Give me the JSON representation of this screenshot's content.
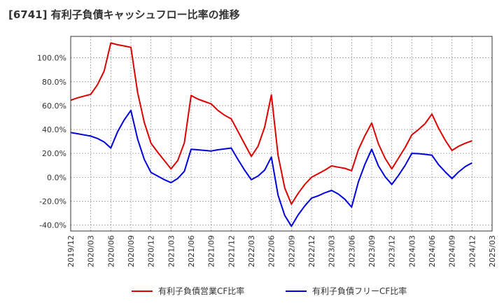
{
  "title": "[6741]  有利子負債キャッシュフロー比率の推移",
  "chart_data": {
    "type": "line",
    "title": "[6741]  有利子負債キャッシュフロー比率の推移",
    "x_tick_labels": [
      "2019/12",
      "2020/03",
      "2020/06",
      "2020/09",
      "2020/12",
      "2021/03",
      "2021/06",
      "2021/09",
      "2021/12",
      "2022/03",
      "2022/06",
      "2022/09",
      "2022/12",
      "2023/03",
      "2023/06",
      "2023/09",
      "2023/12",
      "2024/03",
      "2024/06",
      "2024/09",
      "2024/12",
      "2025/03"
    ],
    "x_start": "2019/12",
    "y_ticks": [
      -40,
      -20,
      0,
      20,
      40,
      60,
      80,
      100
    ],
    "y_tick_labels": [
      "-40.0%",
      "-20.0%",
      "0.0%",
      "20.0%",
      "40.0%",
      "60.0%",
      "80.0%",
      "100.0%"
    ],
    "ylim": [
      -45,
      118
    ],
    "grid": true,
    "legend_position": "bottom",
    "series": [
      {
        "name": "有利子負債営業CF比率",
        "color": "#dd0000",
        "points": [
          {
            "x": "2019/12",
            "y": 64.5
          },
          {
            "x": "2020/01",
            "y": 66.5
          },
          {
            "x": "2020/02",
            "y": 68.0
          },
          {
            "x": "2020/03",
            "y": 69.5
          },
          {
            "x": "2020/04",
            "y": 77.5
          },
          {
            "x": "2020/05",
            "y": 89.0
          },
          {
            "x": "2020/06",
            "y": 112.5
          },
          {
            "x": "2020/07",
            "y": 111.0
          },
          {
            "x": "2020/08",
            "y": 110.0
          },
          {
            "x": "2020/09",
            "y": 108.8
          },
          {
            "x": "2020/10",
            "y": 71.0
          },
          {
            "x": "2020/11",
            "y": 46.0
          },
          {
            "x": "2020/12",
            "y": 28.5
          },
          {
            "x": "2021/01",
            "y": 21.0
          },
          {
            "x": "2021/02",
            "y": 14.0
          },
          {
            "x": "2021/03",
            "y": 7.0
          },
          {
            "x": "2021/04",
            "y": 14.0
          },
          {
            "x": "2021/05",
            "y": 29.0
          },
          {
            "x": "2021/06",
            "y": 68.5
          },
          {
            "x": "2021/07",
            "y": 65.5
          },
          {
            "x": "2021/08",
            "y": 63.5
          },
          {
            "x": "2021/09",
            "y": 61.5
          },
          {
            "x": "2021/10",
            "y": 56.0
          },
          {
            "x": "2021/11",
            "y": 52.0
          },
          {
            "x": "2021/12",
            "y": 49.0
          },
          {
            "x": "2022/01",
            "y": 38.5
          },
          {
            "x": "2022/02",
            "y": 28.0
          },
          {
            "x": "2022/03",
            "y": 17.5
          },
          {
            "x": "2022/04",
            "y": 26.0
          },
          {
            "x": "2022/05",
            "y": 42.0
          },
          {
            "x": "2022/06",
            "y": 69.0
          },
          {
            "x": "2022/07",
            "y": 18.5
          },
          {
            "x": "2022/08",
            "y": -9.0
          },
          {
            "x": "2022/09",
            "y": -22.5
          },
          {
            "x": "2022/10",
            "y": -13.5
          },
          {
            "x": "2022/11",
            "y": -6.0
          },
          {
            "x": "2022/12",
            "y": 0.0
          },
          {
            "x": "2023/01",
            "y": 3.0
          },
          {
            "x": "2023/02",
            "y": 6.0
          },
          {
            "x": "2023/03",
            "y": 9.5
          },
          {
            "x": "2023/04",
            "y": 8.5
          },
          {
            "x": "2023/05",
            "y": 7.5
          },
          {
            "x": "2023/06",
            "y": 5.5
          },
          {
            "x": "2023/07",
            "y": 23.0
          },
          {
            "x": "2023/08",
            "y": 35.0
          },
          {
            "x": "2023/09",
            "y": 45.5
          },
          {
            "x": "2023/10",
            "y": 28.0
          },
          {
            "x": "2023/11",
            "y": 16.0
          },
          {
            "x": "2023/12",
            "y": 7.0
          },
          {
            "x": "2024/01",
            "y": 16.0
          },
          {
            "x": "2024/02",
            "y": 25.0
          },
          {
            "x": "2024/03",
            "y": 35.5
          },
          {
            "x": "2024/04",
            "y": 40.0
          },
          {
            "x": "2024/05",
            "y": 45.0
          },
          {
            "x": "2024/06",
            "y": 53.0
          },
          {
            "x": "2024/07",
            "y": 41.0
          },
          {
            "x": "2024/08",
            "y": 31.0
          },
          {
            "x": "2024/09",
            "y": 22.5
          },
          {
            "x": "2024/10",
            "y": 26.0
          },
          {
            "x": "2024/11",
            "y": 28.5
          },
          {
            "x": "2024/12",
            "y": 30.5
          }
        ]
      },
      {
        "name": "有利子負債フリーCF比率",
        "color": "#0000dd",
        "points": [
          {
            "x": "2019/12",
            "y": 37.5
          },
          {
            "x": "2020/01",
            "y": 36.5
          },
          {
            "x": "2020/02",
            "y": 35.5
          },
          {
            "x": "2020/03",
            "y": 34.5
          },
          {
            "x": "2020/04",
            "y": 32.5
          },
          {
            "x": "2020/05",
            "y": 29.5
          },
          {
            "x": "2020/06",
            "y": 24.5
          },
          {
            "x": "2020/07",
            "y": 38.0
          },
          {
            "x": "2020/08",
            "y": 48.0
          },
          {
            "x": "2020/09",
            "y": 56.0
          },
          {
            "x": "2020/10",
            "y": 32.0
          },
          {
            "x": "2020/11",
            "y": 15.0
          },
          {
            "x": "2020/12",
            "y": 4.0
          },
          {
            "x": "2021/01",
            "y": 1.0
          },
          {
            "x": "2021/02",
            "y": -2.0
          },
          {
            "x": "2021/03",
            "y": -4.5
          },
          {
            "x": "2021/04",
            "y": -1.0
          },
          {
            "x": "2021/05",
            "y": 5.0
          },
          {
            "x": "2021/06",
            "y": 23.5
          },
          {
            "x": "2021/07",
            "y": 23.0
          },
          {
            "x": "2021/08",
            "y": 22.5
          },
          {
            "x": "2021/09",
            "y": 22.0
          },
          {
            "x": "2021/10",
            "y": 23.0
          },
          {
            "x": "2021/11",
            "y": 23.8
          },
          {
            "x": "2021/12",
            "y": 24.5
          },
          {
            "x": "2022/01",
            "y": 15.0
          },
          {
            "x": "2022/02",
            "y": 6.0
          },
          {
            "x": "2022/03",
            "y": -2.0
          },
          {
            "x": "2022/04",
            "y": 1.0
          },
          {
            "x": "2022/05",
            "y": 6.0
          },
          {
            "x": "2022/06",
            "y": 17.0
          },
          {
            "x": "2022/07",
            "y": -15.0
          },
          {
            "x": "2022/08",
            "y": -32.0
          },
          {
            "x": "2022/09",
            "y": -41.0
          },
          {
            "x": "2022/10",
            "y": -31.5
          },
          {
            "x": "2022/11",
            "y": -24.0
          },
          {
            "x": "2022/12",
            "y": -17.5
          },
          {
            "x": "2023/01",
            "y": -15.5
          },
          {
            "x": "2023/02",
            "y": -13.0
          },
          {
            "x": "2023/03",
            "y": -11.0
          },
          {
            "x": "2023/04",
            "y": -14.0
          },
          {
            "x": "2023/05",
            "y": -18.5
          },
          {
            "x": "2023/06",
            "y": -25.0
          },
          {
            "x": "2023/07",
            "y": -4.0
          },
          {
            "x": "2023/08",
            "y": 11.0
          },
          {
            "x": "2023/09",
            "y": 23.5
          },
          {
            "x": "2023/10",
            "y": 9.5
          },
          {
            "x": "2023/11",
            "y": 0.5
          },
          {
            "x": "2023/12",
            "y": -6.0
          },
          {
            "x": "2024/01",
            "y": 1.5
          },
          {
            "x": "2024/02",
            "y": 10.0
          },
          {
            "x": "2024/03",
            "y": 20.0
          },
          {
            "x": "2024/04",
            "y": 19.8
          },
          {
            "x": "2024/05",
            "y": 19.2
          },
          {
            "x": "2024/06",
            "y": 18.5
          },
          {
            "x": "2024/07",
            "y": 10.5
          },
          {
            "x": "2024/08",
            "y": 4.5
          },
          {
            "x": "2024/09",
            "y": -1.0
          },
          {
            "x": "2024/10",
            "y": 4.5
          },
          {
            "x": "2024/11",
            "y": 9.0
          },
          {
            "x": "2024/12",
            "y": 12.0
          }
        ]
      }
    ]
  }
}
